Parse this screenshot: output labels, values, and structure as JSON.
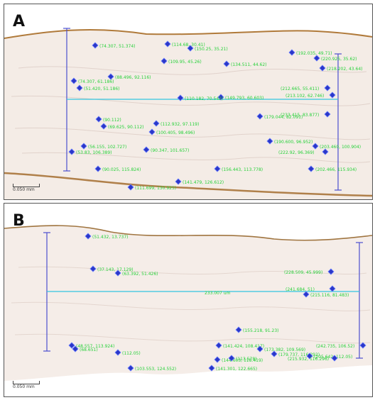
{
  "panels": [
    {
      "label": "A",
      "scale_label": "0.050 mm",
      "coords": [
        "(74.307, 51.374)",
        "(114.68, 30.41)",
        "(109.95, 45.26)",
        "(150.25, 35.21)",
        "(134.511, 44.62)",
        "(218.202, 43.64)",
        "(192.035, 49.71)",
        "(220.925, 35.62)",
        "(88.496, 92.116)",
        "(74.307, 61.186)",
        "(51.420, 51.186)",
        "(149.793, 60.603)",
        "(110.182, 70.542)",
        "(179.044, 82.091)",
        "(212.665, 55.411)",
        "(213.102, 62.746)",
        "(90.112)",
        "(100.405, 98.496)",
        "(69.625, 90.112)",
        "(53.83, 106.389)",
        "(56.155, 102.727)",
        "(90.347, 101.657)",
        "(190.600, 96.952)",
        "(203.460, 100.904)",
        "(90.025, 115.824)",
        "(111.699, 130.925)",
        "(141.479, 126.612)",
        "(156.443, 113.778)",
        "(233.415, 83.877)",
        "(202.466, 115.934)",
        "(222.92, 96.369)",
        "(112.932, 97.119)"
      ],
      "measure_readout": ""
    },
    {
      "label": "B",
      "scale_label": "0.050 mm",
      "coords": [
        "(51.432, 13.737)",
        "(37.143, 17.129)",
        "(63.392, 51.426)",
        "(228.509, 45.999)",
        "(241.684, 51)",
        "(215.116, 81.483)",
        "(155.218, 91.23)",
        "(242.735, 106.52)",
        "(141.424, 108.417)",
        "(173.382, 109.569)",
        "(68.651)",
        "(112.05)",
        "(103.553, 124.552)",
        "(141.301, 122.665)",
        "(144.603, 118.419)",
        "(113.578)",
        "(179.737, 116.292)",
        "(205.642, 112.05)",
        "(215.932, 116.296)",
        "(48.557, 113.924)"
      ],
      "measure_readout": "233.007 um"
    }
  ]
}
